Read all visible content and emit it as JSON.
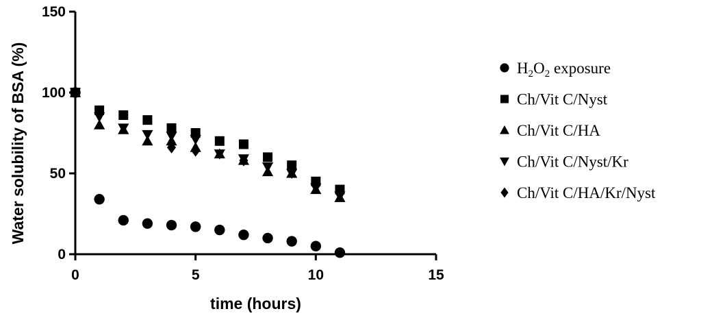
{
  "chart_data": {
    "type": "scatter",
    "title": "",
    "xlabel": "time (hours)",
    "ylabel": "Water solubility of BSA (%)",
    "xlim": [
      0,
      15
    ],
    "ylim": [
      0,
      150
    ],
    "xticks": [
      "0",
      "5",
      "10",
      "15"
    ],
    "yticks": [
      "0",
      "50",
      "100",
      "150"
    ],
    "grid": false,
    "legend_position": "right",
    "series": [
      {
        "name": "H2O2 exposure",
        "name_parts": [
          "H",
          "2",
          "O",
          "2",
          " exposure"
        ],
        "marker": "circle",
        "x": [
          0,
          1,
          2,
          3,
          4,
          5,
          6,
          7,
          8,
          9,
          10,
          11
        ],
        "y": [
          100,
          34,
          21,
          19,
          18,
          17,
          15,
          12,
          10,
          8,
          5,
          1
        ]
      },
      {
        "name": "Ch/Vit C/Nyst",
        "marker": "square",
        "x": [
          0,
          1,
          2,
          3,
          4,
          5,
          6,
          7,
          8,
          9,
          10,
          11
        ],
        "y": [
          100,
          89,
          86,
          83,
          78,
          75,
          70,
          68,
          60,
          55,
          45,
          40
        ]
      },
      {
        "name": "Ch/Vit C/HA",
        "marker": "triangle-up",
        "x": [
          0,
          1,
          2,
          3,
          4,
          5,
          6,
          7,
          8,
          9,
          10,
          11
        ],
        "y": [
          100,
          80,
          77,
          70,
          70,
          66,
          62,
          58,
          51,
          50,
          40,
          35
        ]
      },
      {
        "name": "Ch/Vit C/Nyst/Kr",
        "marker": "triangle-down",
        "x": [
          0,
          1,
          2,
          3,
          4,
          5,
          6,
          7,
          8,
          9,
          10,
          11
        ],
        "y": [
          100,
          85,
          78,
          74,
          73,
          71,
          62,
          59,
          54,
          50,
          41,
          36
        ]
      },
      {
        "name": "Ch/Vit C/HA/Kr/Nyst",
        "marker": "diamond",
        "x": [
          0,
          4,
          5,
          7
        ],
        "y": [
          100,
          66,
          64,
          58
        ]
      }
    ]
  }
}
